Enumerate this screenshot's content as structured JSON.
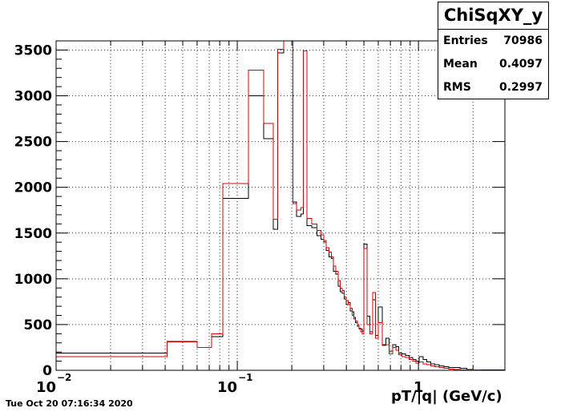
{
  "chart_data": {
    "type": "histogram",
    "title": "",
    "xlabel": "pT/|q| (GeV/c)",
    "ylabel": "",
    "x_scale": "log",
    "xlim": [
      0.01,
      3.0
    ],
    "ylim": [
      0,
      3600
    ],
    "grid": true,
    "x_tick_labels": [
      {
        "value": 0.01,
        "base": "10",
        "exp": "−2"
      },
      {
        "value": 0.1,
        "base": "10",
        "exp": "−1"
      },
      {
        "value": 1,
        "base": "1",
        "exp": ""
      }
    ],
    "y_ticks": [
      0,
      500,
      1000,
      1500,
      2000,
      2500,
      3000,
      3500
    ],
    "series": [
      {
        "color": "#000000",
        "edges": [
          0.01,
          0.041,
          0.06,
          0.072,
          0.083,
          0.115,
          0.14,
          0.158,
          0.167,
          0.18,
          0.195,
          0.203,
          0.212,
          0.225,
          0.232,
          0.243,
          0.258,
          0.275,
          0.29,
          0.3,
          0.31,
          0.32,
          0.33,
          0.34,
          0.35,
          0.36,
          0.37,
          0.38,
          0.39,
          0.4,
          0.41,
          0.42,
          0.43,
          0.44,
          0.45,
          0.46,
          0.47,
          0.48,
          0.49,
          0.5,
          0.52,
          0.54,
          0.56,
          0.58,
          0.6,
          0.63,
          0.66,
          0.69,
          0.72,
          0.75,
          0.78,
          0.81,
          0.85,
          0.89,
          0.93,
          0.97,
          1.01,
          1.06,
          1.11,
          1.17,
          1.23,
          1.3,
          1.38,
          1.47,
          1.57,
          1.7,
          1.85,
          2.0,
          2.2,
          2.5,
          3.0
        ],
        "values": [
          190,
          315,
          250,
          370,
          1880,
          3000,
          2530,
          1540,
          3470,
          3600,
          3600,
          1840,
          1680,
          1710,
          3490,
          1580,
          1560,
          1470,
          1430,
          1400,
          1310,
          1240,
          1220,
          1080,
          1050,
          920,
          860,
          840,
          780,
          720,
          740,
          650,
          640,
          580,
          520,
          480,
          460,
          450,
          430,
          1380,
          590,
          420,
          770,
          380,
          690,
          280,
          350,
          210,
          280,
          260,
          190,
          180,
          160,
          140,
          120,
          100,
          150,
          120,
          90,
          70,
          60,
          50,
          40,
          30,
          30,
          20,
          10,
          5,
          5,
          3
        ]
      },
      {
        "color": "#d40000",
        "edges": [
          0.01,
          0.041,
          0.06,
          0.072,
          0.083,
          0.115,
          0.14,
          0.158,
          0.167,
          0.18,
          0.195,
          0.203,
          0.212,
          0.225,
          0.232,
          0.243,
          0.258,
          0.275,
          0.29,
          0.3,
          0.31,
          0.32,
          0.33,
          0.34,
          0.35,
          0.36,
          0.37,
          0.38,
          0.39,
          0.4,
          0.41,
          0.42,
          0.43,
          0.44,
          0.45,
          0.46,
          0.47,
          0.48,
          0.49,
          0.5,
          0.52,
          0.54,
          0.56,
          0.58,
          0.6,
          0.63,
          0.66,
          0.69,
          0.72,
          0.75,
          0.78,
          0.81,
          0.85,
          0.89,
          0.93,
          0.97,
          1.01,
          1.06,
          1.11,
          1.17,
          1.23,
          1.3,
          1.38,
          1.47,
          1.57,
          1.7,
          1.85,
          2.0,
          2.2,
          2.5,
          3.0
        ],
        "values": [
          150,
          310,
          250,
          400,
          2040,
          3280,
          2700,
          1650,
          3510,
          3600,
          3600,
          1820,
          1750,
          1780,
          3490,
          1660,
          1600,
          1530,
          1480,
          1420,
          1340,
          1290,
          1240,
          1140,
          1080,
          980,
          900,
          870,
          800,
          760,
          720,
          680,
          600,
          560,
          540,
          500,
          450,
          420,
          400,
          1330,
          500,
          400,
          850,
          350,
          520,
          270,
          280,
          180,
          250,
          220,
          170,
          150,
          140,
          120,
          100,
          80,
          90,
          70,
          60,
          50,
          40,
          30,
          20,
          15,
          10,
          5,
          5,
          3,
          2,
          1
        ]
      }
    ]
  },
  "stats": {
    "title": "ChiSqXY_y",
    "rows": [
      {
        "label": "Entries",
        "value": "70986"
      },
      {
        "label": "Mean",
        "value": "0.4097"
      },
      {
        "label": "RMS",
        "value": "0.2997"
      }
    ]
  },
  "datestamp": "Tue Oct 20 07:16:34 2020"
}
